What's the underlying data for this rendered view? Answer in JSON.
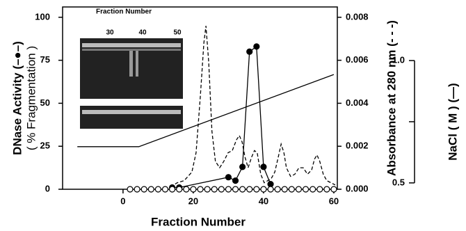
{
  "chart_data": {
    "type": "line",
    "xlabel": "Fraction Number",
    "ylabel": "DNase Activity (–●–)",
    "ylabel_sub": "( % Fragmentation )",
    "y2label": "Absorbance at 280 nm (- - -)",
    "y3label": "NaCl ( M ) (—)",
    "inset_title": "Fraction Number",
    "inset_labels": [
      "30",
      "40",
      "50"
    ],
    "xlim": [
      -17.2,
      61
    ],
    "xticks": [
      0,
      20,
      40,
      60
    ],
    "ylim": [
      0,
      106
    ],
    "yticks": [
      0,
      25,
      50,
      75,
      100
    ],
    "y2lim": [
      0,
      0.00848
    ],
    "y2ticks": [
      {
        "value": 0,
        "label": "0.000"
      },
      {
        "value": 0.002,
        "label": "0.002"
      },
      {
        "value": 0.004,
        "label": "0.004"
      },
      {
        "value": 0.006,
        "label": "0.006"
      },
      {
        "value": 0.008,
        "label": "0.008"
      }
    ],
    "y3lim": [
      0.474,
      1.219
    ],
    "y3ticks": [
      {
        "value": 0.5,
        "label": "0.5"
      },
      {
        "value": 1,
        "label": "1.0"
      }
    ],
    "y3minorticks": [
      0.75
    ],
    "series": [
      {
        "color": "#000000",
        "marker": "filled-circle",
        "dash": "solid",
        "axis": "y",
        "x": [
          14,
          16,
          30,
          32,
          34,
          36,
          38,
          40,
          42
        ],
        "values": [
          1,
          1,
          7,
          5,
          13,
          80,
          83,
          13,
          3
        ]
      },
      {
        "color": "#000000",
        "marker": "open-circle",
        "dash": "none",
        "axis": "y",
        "x": [
          2,
          4,
          6,
          8,
          10,
          12,
          14,
          16,
          18,
          20,
          22,
          24,
          26,
          28,
          30,
          32,
          34,
          36,
          38,
          40,
          42,
          44,
          46,
          48,
          50,
          52,
          54,
          56,
          58,
          60
        ],
        "values": [
          0,
          0,
          0,
          0,
          0,
          0,
          0,
          0,
          0,
          0,
          0,
          0,
          0,
          0,
          0,
          0,
          0,
          0,
          0,
          0,
          0,
          0,
          0,
          0,
          0,
          0,
          0,
          0,
          0,
          0
        ]
      },
      {
        "color": "#000000",
        "marker": "none",
        "dash": "dashed",
        "axis": "y2",
        "x": [
          13.5,
          15.4,
          17.4,
          19.6,
          20.8,
          22.0,
          23.0,
          23.6,
          24.4,
          25.3,
          26.3,
          27.5,
          28.7,
          29.9,
          31.1,
          32.3,
          33.1,
          33.9,
          34.7,
          35.6,
          36.6,
          37.4,
          38.2,
          39.2,
          40.2,
          42.2,
          43.2,
          44.2,
          45.0,
          45.8,
          46.5,
          47.7,
          48.9,
          50.1,
          51.3,
          52.5,
          53.7,
          54.5,
          55.2,
          56.0,
          57.0,
          58.0,
          60.4
        ],
        "values": [
          0.0001,
          0.0003,
          0.0004,
          0.0008,
          0.0017,
          0.0043,
          0.0068,
          0.0076,
          0.0059,
          0.0027,
          0.0013,
          0.001,
          0.0013,
          0.0017,
          0.0018,
          0.0023,
          0.0025,
          0.0022,
          0.0015,
          0.001,
          0.0015,
          0.0018,
          0.0017,
          0.0007,
          0.0003,
          0.0005,
          0.0008,
          0.0015,
          0.0021,
          0.0017,
          0.001,
          0.0006,
          0.0007,
          0.001,
          0.001,
          0.0007,
          0.0009,
          0.0014,
          0.0016,
          0.0013,
          0.0007,
          0.0004,
          0.0002
        ]
      },
      {
        "color": "#000000",
        "marker": "none",
        "dash": "solid",
        "axis": "y3",
        "x": [
          -13,
          4.5,
          60
        ],
        "values": [
          0.648,
          0.648,
          0.943
        ]
      }
    ]
  }
}
